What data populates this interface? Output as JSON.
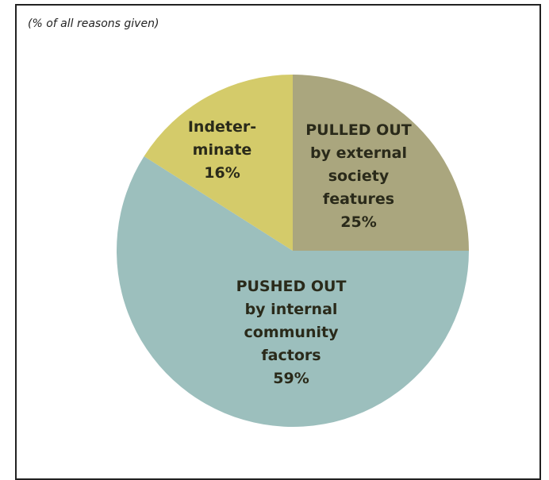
{
  "chart_data": {
    "type": "pie",
    "subtitle": "(% of all reasons given)",
    "slices": [
      {
        "label_lines": [
          "PULLED OUT",
          "by external",
          "society",
          "features",
          "25%"
        ],
        "value": 25,
        "color": "#aaa67e"
      },
      {
        "label_lines": [
          "PUSHED OUT",
          "by internal",
          "community",
          "factors",
          "59%"
        ],
        "value": 59,
        "color": "#9cbfbd"
      },
      {
        "label_lines": [
          "Indeter-",
          "minate",
          "16%"
        ],
        "value": 16,
        "color": "#d4cb6a"
      }
    ]
  }
}
